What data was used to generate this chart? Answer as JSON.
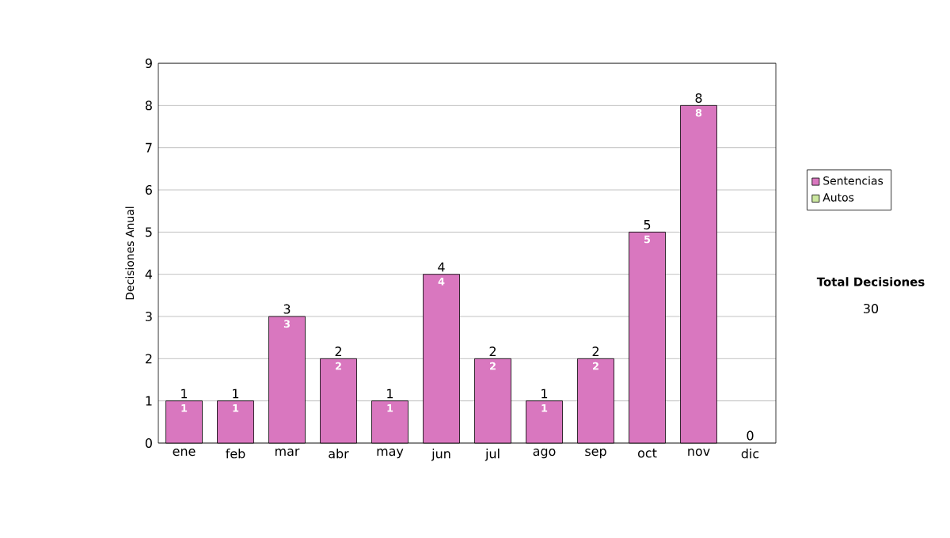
{
  "chart_data": {
    "type": "bar",
    "stacked": true,
    "ylabel": "Decisiones Anual",
    "categories": [
      "ene",
      "feb",
      "mar",
      "abr",
      "may",
      "jun",
      "jul",
      "ago",
      "sep",
      "oct",
      "nov",
      "dic"
    ],
    "series": [
      {
        "name": "Sentencias",
        "color": "#d977bf",
        "values": [
          1,
          1,
          3,
          2,
          1,
          4,
          2,
          1,
          2,
          5,
          8,
          0
        ],
        "value_labels": [
          "1",
          "1",
          "3",
          "2",
          "1",
          "4",
          "2",
          "1",
          "2",
          "5",
          "8",
          null
        ]
      },
      {
        "name": "Autos",
        "color": "#cce8a0",
        "values": [
          0,
          0,
          0,
          0,
          0,
          0,
          0,
          0,
          0,
          0,
          0,
          0
        ]
      }
    ],
    "totals": [
      "1",
      "1",
      "3",
      "2",
      "1",
      "4",
      "2",
      "1",
      "2",
      "5",
      "8",
      "0"
    ],
    "ylim": [
      0,
      9
    ],
    "yticks": [
      0,
      1,
      2,
      3,
      4,
      5,
      6,
      7,
      8,
      9
    ],
    "grid": "y",
    "legend": "right",
    "annotations": [
      "Total Decisiones",
      "30"
    ]
  }
}
